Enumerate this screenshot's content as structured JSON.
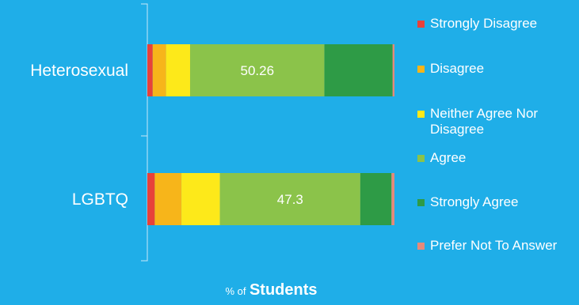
{
  "chart_data": {
    "type": "bar",
    "orientation": "horizontal",
    "stacked": true,
    "categories": [
      "Heterosexual",
      "LGBTQ"
    ],
    "series": [
      {
        "name": "Strongly Disagree",
        "color": "#e8413a",
        "values": [
          2.0,
          2.5
        ]
      },
      {
        "name": "Disagree",
        "color": "#f7b51a",
        "values": [
          5.0,
          9.0
        ]
      },
      {
        "name": "Neither Agree Nor Disagree",
        "color": "#fde91a",
        "values": [
          9.0,
          13.0
        ]
      },
      {
        "name": "Agree",
        "color": "#8bc34a",
        "values": [
          50.26,
          47.3
        ]
      },
      {
        "name": "Strongly Agree",
        "color": "#2e9b46",
        "values": [
          25.5,
          10.5
        ]
      },
      {
        "name": "Prefer Not To Answer",
        "color": "#e58a7a",
        "values": [
          0.7,
          1.0
        ]
      }
    ],
    "data_labels": [
      {
        "category": "Heterosexual",
        "series": "Agree",
        "text": "50.26"
      },
      {
        "category": "LGBTQ",
        "series": "Agree",
        "text": "47.3"
      }
    ],
    "xlabel_small": "% of",
    "xlabel_big": "Students",
    "legend_position": "right",
    "grid": false
  }
}
